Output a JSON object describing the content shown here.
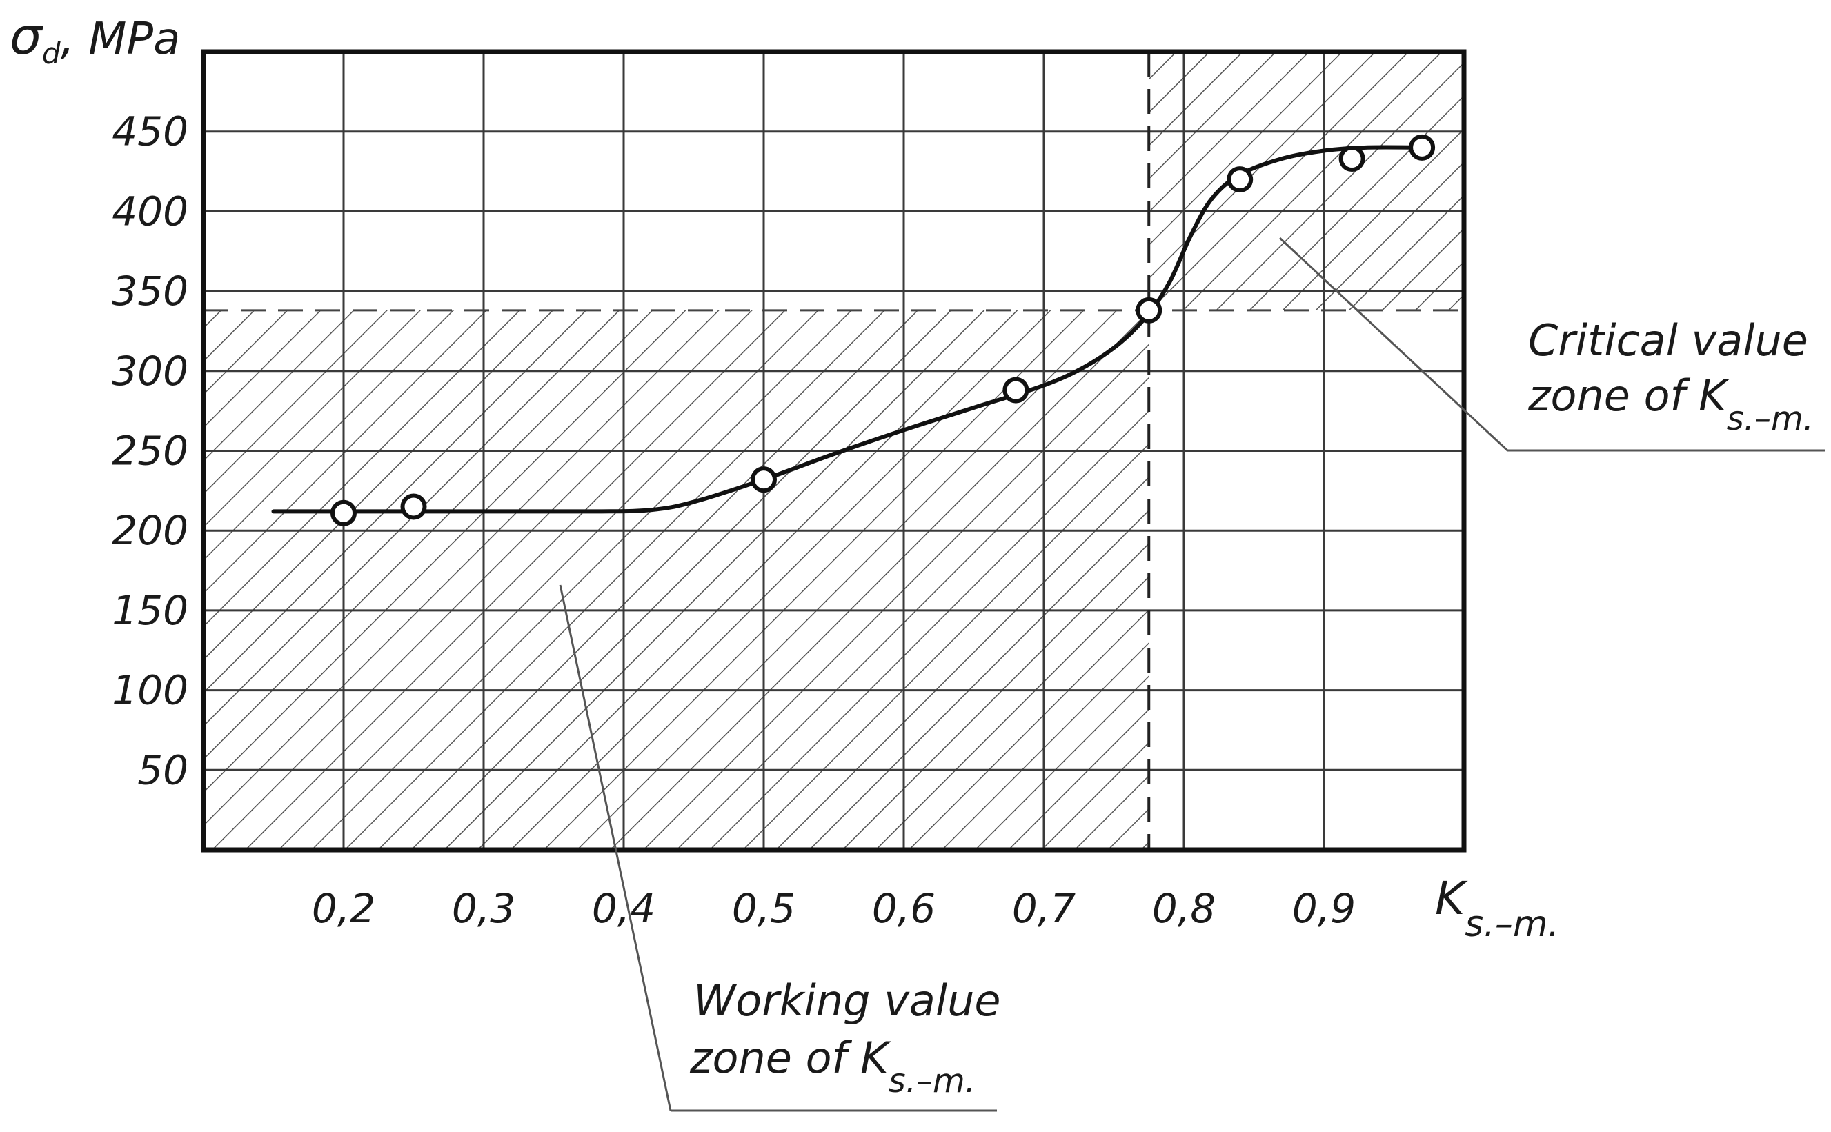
{
  "chart_data": {
    "type": "line",
    "ylabel": {
      "symbol": "σ",
      "subscript": "d",
      "unit": ", MPa"
    },
    "xlabel": {
      "symbol": "K",
      "subscript": "s.–m."
    },
    "xlim": [
      0.1,
      1.0
    ],
    "ylim": [
      0,
      500
    ],
    "x_ticks": [
      {
        "value": 0.2,
        "label": "0,2"
      },
      {
        "value": 0.3,
        "label": "0,3"
      },
      {
        "value": 0.4,
        "label": "0,4"
      },
      {
        "value": 0.5,
        "label": "0,5"
      },
      {
        "value": 0.6,
        "label": "0,6"
      },
      {
        "value": 0.7,
        "label": "0,7"
      },
      {
        "value": 0.8,
        "label": "0,8"
      },
      {
        "value": 0.9,
        "label": "0,9"
      }
    ],
    "y_ticks": [
      {
        "value": 50,
        "label": "50"
      },
      {
        "value": 100,
        "label": "100"
      },
      {
        "value": 150,
        "label": "150"
      },
      {
        "value": 200,
        "label": "200"
      },
      {
        "value": 250,
        "label": "250"
      },
      {
        "value": 300,
        "label": "300"
      },
      {
        "value": 350,
        "label": "350"
      },
      {
        "value": 400,
        "label": "400"
      },
      {
        "value": 450,
        "label": "450"
      }
    ],
    "grid_x": [
      0.2,
      0.3,
      0.4,
      0.5,
      0.6,
      0.7,
      0.8,
      0.9
    ],
    "grid_y": [
      50,
      100,
      150,
      200,
      250,
      300,
      350,
      400,
      450
    ],
    "points": [
      {
        "x": 0.2,
        "y": 211
      },
      {
        "x": 0.25,
        "y": 215
      },
      {
        "x": 0.5,
        "y": 232
      },
      {
        "x": 0.68,
        "y": 288
      },
      {
        "x": 0.775,
        "y": 338
      },
      {
        "x": 0.84,
        "y": 420
      },
      {
        "x": 0.92,
        "y": 433
      },
      {
        "x": 0.97,
        "y": 440
      }
    ],
    "curve": [
      [
        0.15,
        212
      ],
      [
        0.2,
        212
      ],
      [
        0.3,
        212
      ],
      [
        0.38,
        212
      ],
      [
        0.42,
        213
      ],
      [
        0.45,
        218
      ],
      [
        0.5,
        232
      ],
      [
        0.55,
        248
      ],
      [
        0.6,
        263
      ],
      [
        0.65,
        277
      ],
      [
        0.7,
        291
      ],
      [
        0.73,
        303
      ],
      [
        0.755,
        318
      ],
      [
        0.775,
        336
      ],
      [
        0.79,
        356
      ],
      [
        0.805,
        385
      ],
      [
        0.82,
        408
      ],
      [
        0.84,
        423
      ],
      [
        0.87,
        433
      ],
      [
        0.9,
        438
      ],
      [
        0.93,
        440
      ],
      [
        0.97,
        440
      ]
    ],
    "threshold_x": 0.775,
    "threshold_y": 338,
    "zones": [
      {
        "id": "working",
        "x": [
          0.1,
          0.775
        ],
        "y": [
          0,
          338
        ],
        "label_lines": [
          {
            "text": "Working value"
          },
          {
            "text": "zone of ",
            "symbol": "K",
            "subscript": "s.–m."
          }
        ]
      },
      {
        "id": "critical",
        "x": [
          0.775,
          1.0
        ],
        "y": [
          338,
          500
        ],
        "label_lines": [
          {
            "text": "Critical value"
          },
          {
            "text": "zone of ",
            "symbol": "K",
            "subscript": "s.–m."
          }
        ]
      }
    ],
    "colors": {
      "line": "#111111",
      "grid": "#3a3a3a",
      "hatch": "#555555",
      "text": "#1a1a1a"
    }
  }
}
